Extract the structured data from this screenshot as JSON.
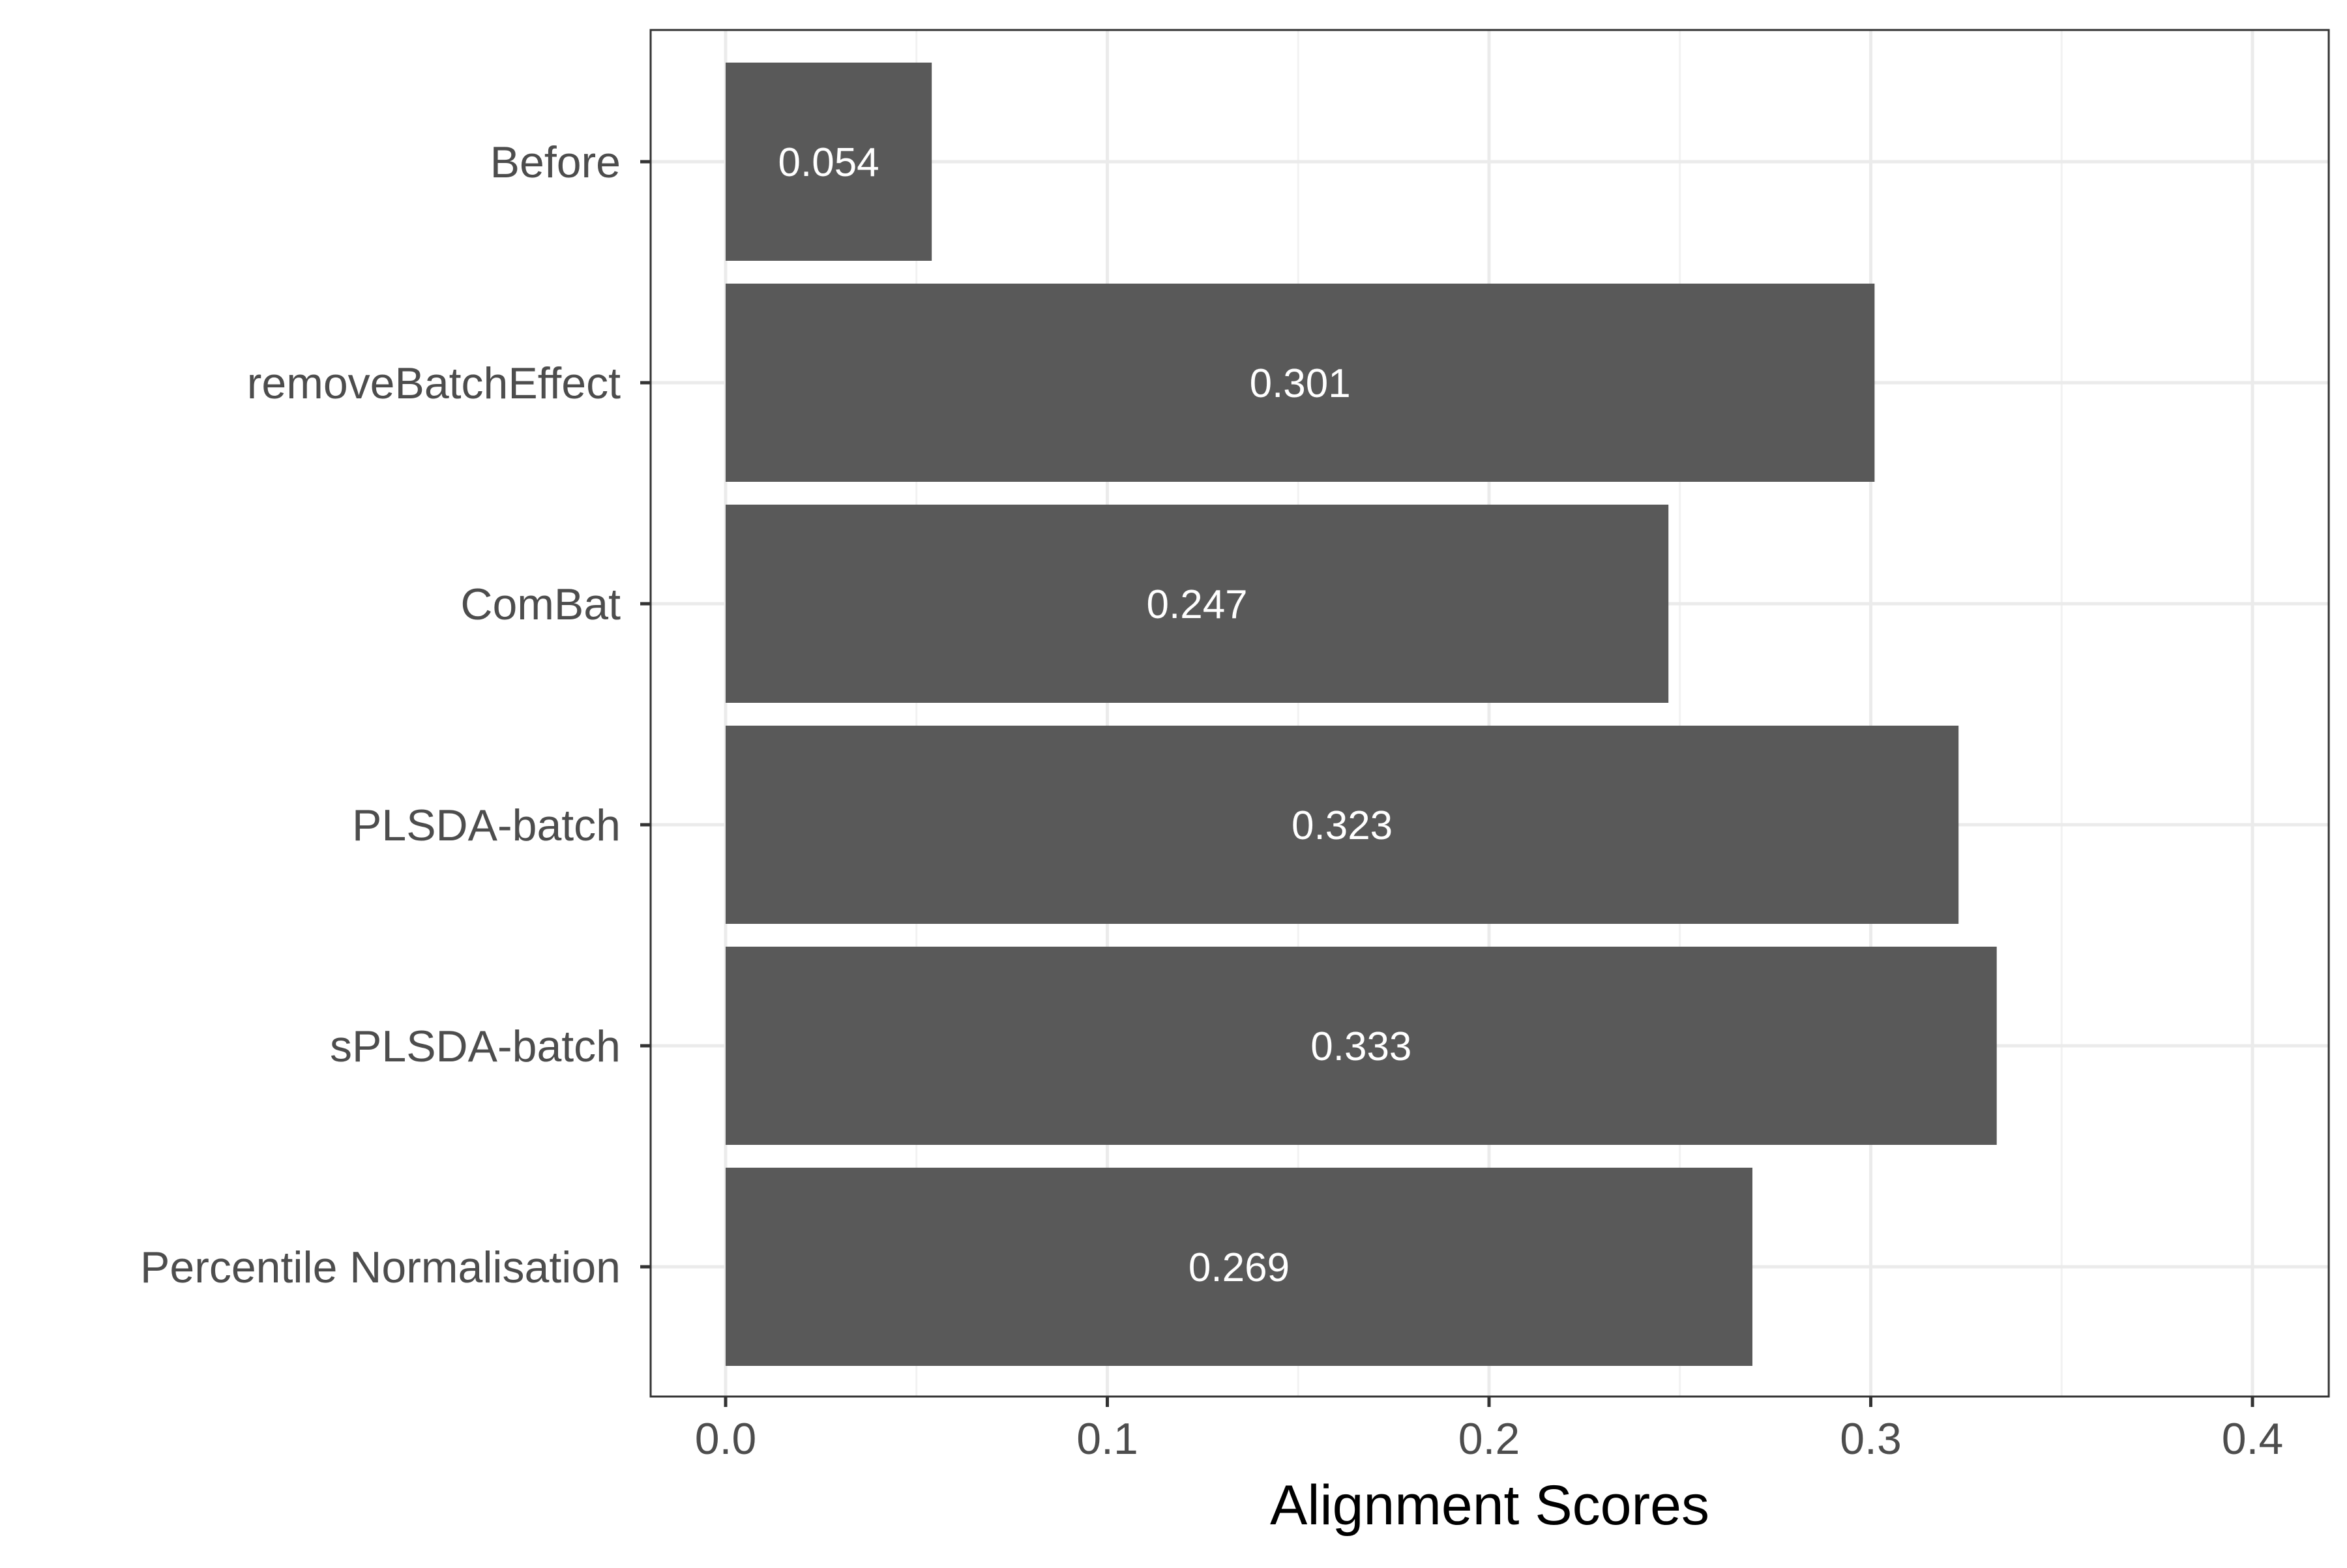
{
  "chart_data": {
    "type": "bar",
    "orientation": "horizontal",
    "categories": [
      "Before",
      "removeBatchEffect",
      "ComBat",
      "PLSDA-batch",
      "sPLSDA-batch",
      "Percentile Normalisation"
    ],
    "values": [
      0.054,
      0.301,
      0.247,
      0.323,
      0.333,
      0.269
    ],
    "data_labels": [
      "0.054",
      "0.301",
      "0.247",
      "0.323",
      "0.333",
      "0.269"
    ],
    "title": "",
    "xlabel": "Alignment Scores",
    "ylabel": "",
    "xlim": [
      -0.02,
      0.42
    ],
    "x_ticks": [
      0.0,
      0.1,
      0.2,
      0.3,
      0.4
    ],
    "x_tick_labels": [
      "0.0",
      "0.1",
      "0.2",
      "0.3",
      "0.4"
    ],
    "grid": true,
    "legend": "none",
    "colors": {
      "bar": "#595959",
      "bar_label": "#ffffff",
      "grid_major": "#ebebeb",
      "grid_minor": "#f2f2f2",
      "axis_text": "#4d4d4d",
      "axis_title": "#000000",
      "panel_border": "#333333",
      "background": "#ffffff"
    }
  }
}
